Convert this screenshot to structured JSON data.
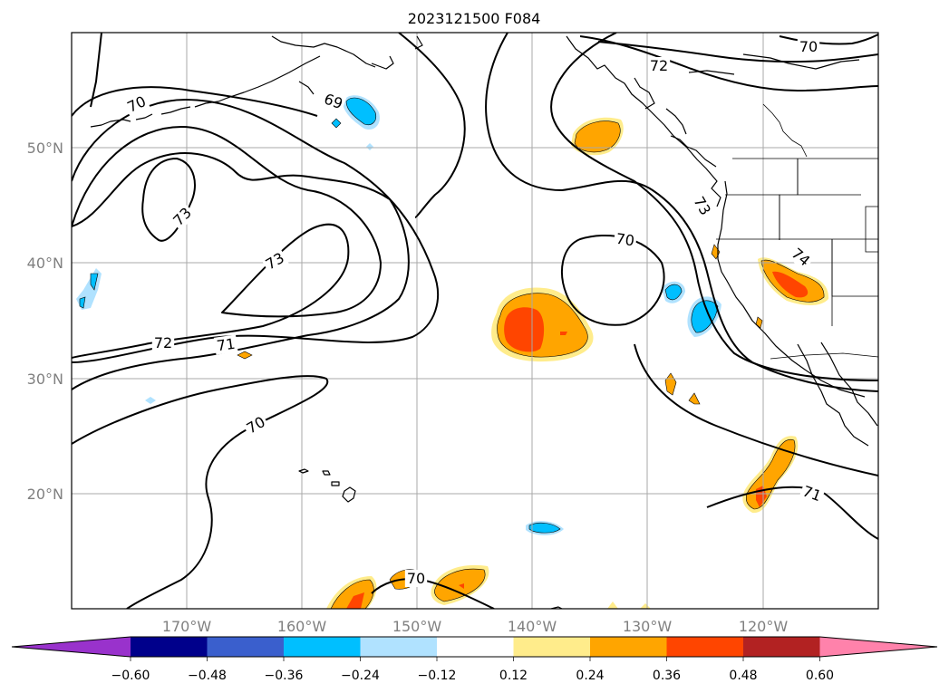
{
  "title": "2023121500 F084",
  "map": {
    "lon_range": [
      -180,
      -110
    ],
    "lat_range": [
      10,
      60
    ],
    "lon_ticks": [
      {
        "value": -170,
        "label": "170°W"
      },
      {
        "value": -160,
        "label": "160°W"
      },
      {
        "value": -150,
        "label": "150°W"
      },
      {
        "value": -140,
        "label": "140°W"
      },
      {
        "value": -130,
        "label": "130°W"
      },
      {
        "value": -120,
        "label": "120°W"
      }
    ],
    "lat_ticks": [
      {
        "value": 50,
        "label": "50°N"
      },
      {
        "value": 40,
        "label": "40°N"
      },
      {
        "value": 30,
        "label": "30°N"
      },
      {
        "value": 20,
        "label": "20°N"
      }
    ],
    "grid": true
  },
  "contour_labels": [
    {
      "text": "70",
      "id": "c70-nw"
    },
    {
      "text": "69",
      "id": "c69"
    },
    {
      "text": "73",
      "id": "c73-n"
    },
    {
      "text": "73",
      "id": "c73-c"
    },
    {
      "text": "72",
      "id": "c72-w"
    },
    {
      "text": "71",
      "id": "c71-w"
    },
    {
      "text": "70",
      "id": "c70-sw"
    },
    {
      "text": "72",
      "id": "c72-ne"
    },
    {
      "text": "70",
      "id": "c70-ne"
    },
    {
      "text": "70",
      "id": "c70-c"
    },
    {
      "text": "73",
      "id": "c73-e"
    },
    {
      "text": "74",
      "id": "c74"
    },
    {
      "text": "71",
      "id": "c71-se"
    },
    {
      "text": "70",
      "id": "c70-s"
    }
  ],
  "colorbar": {
    "ticks": [
      "−0.60",
      "−0.48",
      "−0.36",
      "−0.24",
      "−0.12",
      "0.12",
      "0.24",
      "0.36",
      "0.48",
      "0.60"
    ],
    "colors": {
      "under": "#9932cc",
      "c1": "#00008b",
      "c2": "#3a5fcd",
      "c3": "#00bfff",
      "c4": "#b0e2ff",
      "c5": "#ffffff",
      "c6": "#ffec8b",
      "c7": "#ffa500",
      "c8": "#ff4500",
      "c9": "#b22222",
      "over": "#ff82ab"
    }
  }
}
